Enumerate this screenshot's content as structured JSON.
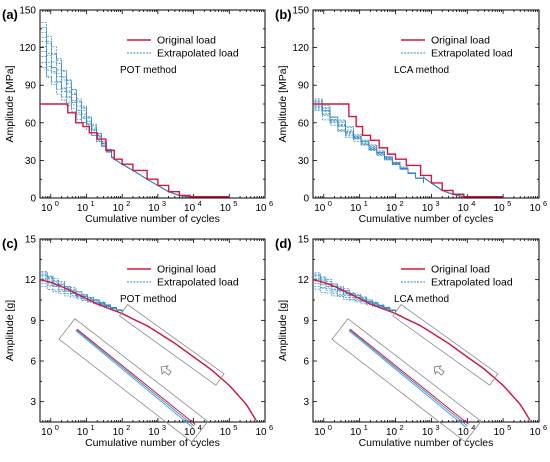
{
  "chart_data": [
    {
      "id": "a",
      "type": "line",
      "panel_letter": "(a)",
      "method_label": "POT method",
      "xlabel": "Cumulative number of cycles",
      "ylabel": "Amplitude [MPa]",
      "xscale": "log",
      "xlim": [
        0.5,
        1000000
      ],
      "ylim": [
        0,
        150
      ],
      "xticks": [
        {
          "v": 1,
          "label": "10",
          "exp": "0"
        },
        {
          "v": 10,
          "label": "10",
          "exp": "1"
        },
        {
          "v": 100,
          "label": "10",
          "exp": "2"
        },
        {
          "v": 1000,
          "label": "10",
          "exp": "3"
        },
        {
          "v": 10000,
          "label": "10",
          "exp": "4"
        },
        {
          "v": 100000,
          "label": "10",
          "exp": "5"
        },
        {
          "v": 1000000,
          "label": "10",
          "exp": "6"
        }
      ],
      "yticks": [
        {
          "v": 0,
          "label": "0"
        },
        {
          "v": 30,
          "label": "30"
        },
        {
          "v": 60,
          "label": "60"
        },
        {
          "v": 90,
          "label": "90"
        },
        {
          "v": 120,
          "label": "120"
        },
        {
          "v": 150,
          "label": "150"
        }
      ],
      "legend": {
        "placement": "top-right",
        "entries": [
          "Original load",
          "Extrapolated load"
        ]
      },
      "extrapolated": {
        "style": "step",
        "count": 10,
        "start_x": 0.55,
        "start_y": [
          104,
          108,
          113,
          117,
          121,
          125,
          128,
          132,
          136,
          140
        ],
        "merge_x": 50,
        "merge_y": 32
      },
      "series": [
        {
          "name": "Original load",
          "style": "step",
          "x": [
            0.5,
            2,
            3,
            5,
            8,
            12,
            20,
            35,
            60,
            100,
            200,
            500,
            1000,
            2000,
            4000,
            8000,
            100000
          ],
          "y": [
            75,
            75,
            68,
            60,
            57,
            52,
            47,
            38,
            31,
            27,
            22,
            15,
            10,
            5,
            2,
            1,
            1
          ]
        }
      ]
    },
    {
      "id": "b",
      "type": "line",
      "panel_letter": "(b)",
      "method_label": "LCA method",
      "xlabel": "Cumulative number of cycles",
      "ylabel": "Amplitude [MPa]",
      "xscale": "log",
      "xlim": [
        0.5,
        1000000
      ],
      "ylim": [
        0,
        150
      ],
      "xticks": [
        {
          "v": 1,
          "label": "10",
          "exp": "0"
        },
        {
          "v": 10,
          "label": "10",
          "exp": "1"
        },
        {
          "v": 100,
          "label": "10",
          "exp": "2"
        },
        {
          "v": 1000,
          "label": "10",
          "exp": "3"
        },
        {
          "v": 10000,
          "label": "10",
          "exp": "4"
        },
        {
          "v": 100000,
          "label": "10",
          "exp": "5"
        },
        {
          "v": 1000000,
          "label": "10",
          "exp": "6"
        }
      ],
      "yticks": [
        {
          "v": 0,
          "label": "0"
        },
        {
          "v": 30,
          "label": "30"
        },
        {
          "v": 60,
          "label": "60"
        },
        {
          "v": 90,
          "label": "90"
        },
        {
          "v": 120,
          "label": "120"
        },
        {
          "v": 150,
          "label": "150"
        }
      ],
      "legend": {
        "placement": "top-right",
        "entries": [
          "Original load",
          "Extrapolated load"
        ]
      },
      "extrapolated": {
        "style": "step",
        "count": 10,
        "start_x": 0.55,
        "start_y": [
          70,
          71,
          72,
          73,
          74,
          75,
          76,
          77,
          78,
          79
        ],
        "merge_x": 600,
        "merge_y": 12
      },
      "series": [
        {
          "name": "Original load",
          "style": "step",
          "x": [
            0.5,
            3,
            5,
            8,
            12,
            20,
            35,
            60,
            100,
            200,
            500,
            1000,
            2000,
            4000,
            8000,
            100000
          ],
          "y": [
            75,
            75,
            65,
            57,
            50,
            46,
            40,
            35,
            31,
            26,
            18,
            12,
            6,
            3,
            1,
            1
          ]
        }
      ]
    },
    {
      "id": "c",
      "type": "line",
      "panel_letter": "(c)",
      "method_label": "POT method",
      "xlabel": "Cumulative number of cycles",
      "ylabel": "Amplitude [g]",
      "xscale": "log",
      "xlim": [
        0.5,
        1000000
      ],
      "ylim": [
        1.5,
        15
      ],
      "xticks": [
        {
          "v": 1,
          "label": "10",
          "exp": "0"
        },
        {
          "v": 10,
          "label": "10",
          "exp": "1"
        },
        {
          "v": 100,
          "label": "10",
          "exp": "2"
        },
        {
          "v": 1000,
          "label": "10",
          "exp": "3"
        },
        {
          "v": 10000,
          "label": "10",
          "exp": "4"
        },
        {
          "v": 100000,
          "label": "10",
          "exp": "5"
        },
        {
          "v": 1000000,
          "label": "10",
          "exp": "6"
        }
      ],
      "yticks": [
        {
          "v": 3,
          "label": "3"
        },
        {
          "v": 6,
          "label": "6"
        },
        {
          "v": 9,
          "label": "9"
        },
        {
          "v": 12,
          "label": "12"
        },
        {
          "v": 15,
          "label": "15"
        }
      ],
      "legend": {
        "placement": "top-right",
        "entries": [
          "Original load",
          "Extrapolated load"
        ]
      },
      "extrapolated": {
        "style": "step",
        "count": 10,
        "start_x": 0.55,
        "start_y": [
          11.5,
          11.7,
          11.9,
          12.0,
          12.1,
          12.2,
          12.3,
          12.4,
          12.5,
          12.6
        ],
        "merge_x": 100,
        "merge_y": 9.6
      },
      "inset": {
        "present": true,
        "arrow": "down-left"
      },
      "series": [
        {
          "name": "Original load",
          "style": "smooth",
          "x": [
            0.5,
            1,
            2,
            5,
            10,
            20,
            50,
            100,
            200,
            500,
            1000,
            3000,
            10000,
            30000,
            100000,
            300000,
            600000
          ],
          "y": [
            12.0,
            11.8,
            11.5,
            11.0,
            10.6,
            10.2,
            9.8,
            9.5,
            9.1,
            8.6,
            8.1,
            7.3,
            6.3,
            5.4,
            4.2,
            2.8,
            1.5
          ]
        }
      ]
    },
    {
      "id": "d",
      "type": "line",
      "panel_letter": "(d)",
      "method_label": "LCA method",
      "xlabel": "Cumulative number of cycles",
      "ylabel": "Amplitude [g]",
      "xscale": "log",
      "xlim": [
        0.5,
        1000000
      ],
      "ylim": [
        1.5,
        15
      ],
      "xticks": [
        {
          "v": 1,
          "label": "10",
          "exp": "0"
        },
        {
          "v": 10,
          "label": "10",
          "exp": "1"
        },
        {
          "v": 100,
          "label": "10",
          "exp": "2"
        },
        {
          "v": 1000,
          "label": "10",
          "exp": "3"
        },
        {
          "v": 10000,
          "label": "10",
          "exp": "4"
        },
        {
          "v": 100000,
          "label": "10",
          "exp": "5"
        },
        {
          "v": 1000000,
          "label": "10",
          "exp": "6"
        }
      ],
      "yticks": [
        {
          "v": 3,
          "label": "3"
        },
        {
          "v": 6,
          "label": "6"
        },
        {
          "v": 9,
          "label": "9"
        },
        {
          "v": 12,
          "label": "12"
        },
        {
          "v": 15,
          "label": "15"
        }
      ],
      "legend": {
        "placement": "top-right",
        "entries": [
          "Original load",
          "Extrapolated load"
        ]
      },
      "extrapolated": {
        "style": "step",
        "count": 10,
        "start_x": 0.55,
        "start_y": [
          11.3,
          11.5,
          11.7,
          11.9,
          12.0,
          12.1,
          12.2,
          12.3,
          12.4,
          12.5
        ],
        "merge_x": 100,
        "merge_y": 9.6
      },
      "inset": {
        "present": true,
        "arrow": "down-left"
      },
      "series": [
        {
          "name": "Original load",
          "style": "smooth",
          "x": [
            0.5,
            1,
            2,
            5,
            10,
            20,
            50,
            100,
            200,
            500,
            1000,
            3000,
            10000,
            30000,
            100000,
            300000,
            600000
          ],
          "y": [
            12.0,
            11.8,
            11.5,
            11.0,
            10.6,
            10.2,
            9.8,
            9.5,
            9.1,
            8.6,
            8.1,
            7.3,
            6.3,
            5.4,
            4.2,
            2.8,
            1.5
          ]
        }
      ]
    }
  ],
  "colors": {
    "original": "#d6163b",
    "extrapolated": "#2f86c4",
    "inset_frame": "#8a8a8a"
  }
}
